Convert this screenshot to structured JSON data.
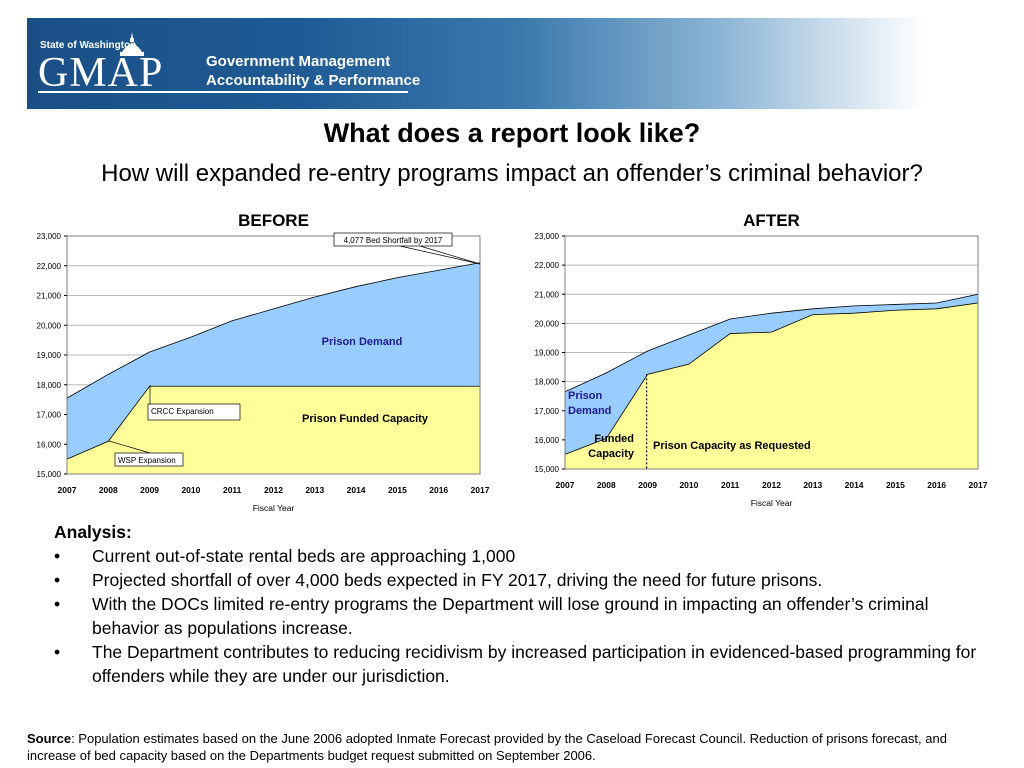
{
  "header": {
    "state": "State of Washington",
    "logo": "GMAP",
    "line1": "Government Management",
    "line2": "Accountability & Performance"
  },
  "title": "What does a report look like?",
  "subtitle": "How will expanded re-entry programs impact an offender’s criminal behavior?",
  "chart_data": [
    {
      "type": "area",
      "title": "BEFORE",
      "xlabel": "Fiscal Year",
      "ylabel": "",
      "categories": [
        "2007",
        "2008",
        "2009",
        "2010",
        "2011",
        "2012",
        "2013",
        "2014",
        "2015",
        "2016",
        "2017"
      ],
      "ylim": [
        15000,
        23000
      ],
      "yticks": [
        "15,000",
        "16,000",
        "17,000",
        "18,000",
        "19,000",
        "20,000",
        "21,000",
        "22,000",
        "23,000"
      ],
      "series": [
        {
          "name": "Prison Demand",
          "color": "#99ccff",
          "values": [
            17550,
            18350,
            19100,
            19600,
            20150,
            20550,
            20950,
            21300,
            21600,
            21850,
            22100
          ]
        },
        {
          "name": "Prison Funded Capacity",
          "color": "#ffff99",
          "values": [
            15500,
            16100,
            17950,
            17950,
            17950,
            17950,
            17950,
            17950,
            17950,
            17950,
            17950
          ]
        }
      ],
      "annotations": [
        "4,077 Bed Shortfall by 2017",
        "CRCC Expansion",
        "WSP Expansion"
      ]
    },
    {
      "type": "area",
      "title": "AFTER",
      "xlabel": "Fiscal Year",
      "ylabel": "",
      "categories": [
        "2007",
        "2008",
        "2009",
        "2010",
        "2011",
        "2012",
        "2013",
        "2014",
        "2015",
        "2016",
        "2017"
      ],
      "ylim": [
        15000,
        23000
      ],
      "yticks": [
        "15,000",
        "16,000",
        "17,000",
        "18,000",
        "19,000",
        "20,000",
        "21,000",
        "22,000",
        "23,000"
      ],
      "series": [
        {
          "name": "Prison Demand",
          "color": "#99ccff",
          "values": [
            17650,
            18300,
            19050,
            19600,
            20150,
            20350,
            20500,
            20600,
            20650,
            20700,
            21000
          ]
        },
        {
          "name": "Prison Capacity as Requested",
          "color": "#ffff99",
          "values": [
            15500,
            16050,
            18250,
            18600,
            19650,
            19700,
            20300,
            20350,
            20450,
            20500,
            20700
          ]
        }
      ],
      "labels": [
        "Prison Demand",
        "Funded Capacity",
        "Prison Capacity as Requested"
      ]
    }
  ],
  "analysis": {
    "heading": "Analysis:",
    "bullet_char": "•",
    "bullets": [
      "Current out-of-state rental beds are approaching 1,000",
      "Projected shortfall of over 4,000 beds expected in FY 2017, driving the need for future prisons.",
      "With the DOCs limited re-entry programs the Department will lose ground in impacting an offender’s criminal behavior as populations increase.",
      "The Department contributes to reducing recidivism by increased participation in evidenced-based programming for offenders while they are under our jurisdiction."
    ]
  },
  "source": {
    "label": "Source",
    "text": ": Population estimates based on the June 2006 adopted Inmate Forecast provided by the Caseload Forecast Council.  Reduction of prisons forecast, and increase of bed capacity based on the Departments budget request submitted on September 2006."
  }
}
